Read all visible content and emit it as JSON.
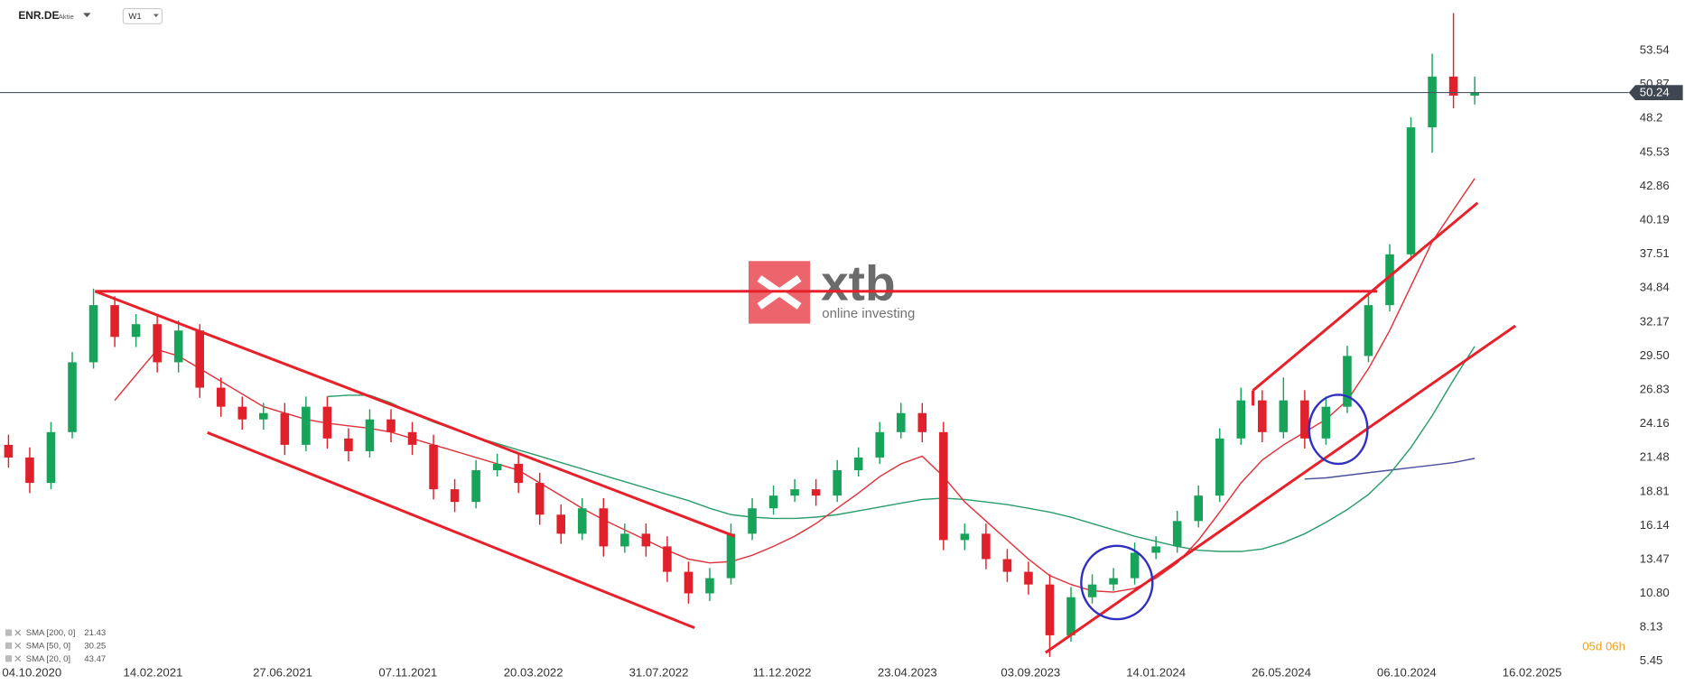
{
  "header": {
    "symbol": "ENR.DE",
    "kind": "Aktie",
    "interval": "W1"
  },
  "logo": {
    "brand": "xtb",
    "tagline": "online investing"
  },
  "countdown": "05d 06h",
  "chart_data": {
    "type": "candlestick",
    "up_color": "#18a35a",
    "down_color": "#e0202a",
    "open": [
      22.5,
      21.5,
      19.5,
      23.5,
      29,
      33.5,
      31,
      32,
      29,
      31.5,
      27,
      25.5,
      24.5,
      25,
      22.5,
      25.5,
      23,
      22,
      24.5,
      23.5,
      22.5,
      19,
      18,
      20.5,
      21,
      19.5,
      17,
      15.5,
      17.5,
      14.5,
      15.5,
      14.5,
      12.5,
      10.8,
      12,
      15.5,
      17.5,
      18.5,
      19,
      18.5,
      20.5,
      21.5,
      23.5,
      25,
      23.5,
      15,
      15.5,
      13.5,
      12.5,
      11.5,
      7.5,
      10.5,
      11.5,
      12,
      14,
      14.5,
      16.5,
      18.5,
      23,
      26,
      23.5,
      26,
      23,
      25.5,
      29.5,
      33.5,
      37.5,
      47.5,
      51.5,
      50
    ],
    "high": [
      23.3,
      22.3,
      24.3,
      29.8,
      34.8,
      34.2,
      32.8,
      32.8,
      32.3,
      32.0,
      27.8,
      26.3,
      25.8,
      25.8,
      26.3,
      26.3,
      23.8,
      25.3,
      25.3,
      24.3,
      23.3,
      19.8,
      21.3,
      21.8,
      21.8,
      20.3,
      17.8,
      18.3,
      18.3,
      16.3,
      16.3,
      15.3,
      13.3,
      12.8,
      16.3,
      18.3,
      19.3,
      19.8,
      19.8,
      21.3,
      22.3,
      24.3,
      25.8,
      25.8,
      24.3,
      16.3,
      16.3,
      14.3,
      13.3,
      12.3,
      11.3,
      12.3,
      12.8,
      14.8,
      15.3,
      17.3,
      19.3,
      23.8,
      27,
      26.8,
      27.8,
      26.8,
      26.3,
      30.3,
      34.3,
      38.3,
      48.3,
      53.3,
      56.5,
      51.5
    ],
    "low": [
      20.7,
      18.7,
      19,
      23,
      28.5,
      30.2,
      30.2,
      28.2,
      28.2,
      26.2,
      24.7,
      23.7,
      23.7,
      21.7,
      22,
      22.2,
      21.2,
      21.5,
      22.7,
      21.7,
      18.2,
      17.2,
      17.5,
      20,
      18.7,
      16.2,
      14.7,
      15,
      13.7,
      14,
      13.7,
      11.7,
      10,
      10.2,
      11.5,
      15,
      17,
      18,
      17.7,
      18,
      20,
      21,
      23,
      22.7,
      14.2,
      14.2,
      12.7,
      11.7,
      10.7,
      5.8,
      7,
      10,
      11,
      11.5,
      13.5,
      14,
      16,
      18,
      22.5,
      22.7,
      23,
      22.2,
      22.5,
      25,
      29,
      33,
      37,
      45.5,
      49,
      49.3
    ],
    "close": [
      21.5,
      19.5,
      23.5,
      29,
      33.5,
      31,
      32,
      29,
      31.5,
      27,
      25.5,
      24.5,
      25,
      22.5,
      25.5,
      23,
      22,
      24.5,
      23.5,
      22.5,
      19,
      18,
      20.5,
      21,
      19.5,
      17,
      15.5,
      17.5,
      14.5,
      15.5,
      14.5,
      12.5,
      10.8,
      12,
      15.5,
      17.5,
      18.5,
      19,
      18.5,
      20.5,
      21.5,
      23.5,
      25,
      23.5,
      15,
      15.5,
      13.5,
      12.5,
      11.5,
      7.5,
      10.5,
      11.5,
      12,
      14,
      14.5,
      16.5,
      18.5,
      23,
      26,
      23.5,
      26,
      23,
      25.5,
      29.5,
      33.5,
      37.5,
      47.5,
      51.5,
      50,
      50.24
    ],
    "last_price": 50.24,
    "series": [
      {
        "name": "SMA [200, 0]",
        "color": "#4b4f9c",
        "values": [
          null,
          null,
          null,
          null,
          null,
          null,
          null,
          null,
          null,
          null,
          null,
          null,
          null,
          null,
          null,
          null,
          null,
          null,
          null,
          null,
          null,
          null,
          null,
          null,
          null,
          null,
          null,
          null,
          null,
          null,
          null,
          null,
          null,
          null,
          null,
          null,
          null,
          null,
          null,
          null,
          null,
          null,
          null,
          null,
          null,
          null,
          null,
          null,
          null,
          null,
          null,
          null,
          null,
          null,
          null,
          null,
          null,
          null,
          null,
          null,
          null,
          19.8,
          19.9,
          20.1,
          20.3,
          20.5,
          20.7,
          20.9,
          21.1,
          21.43
        ]
      },
      {
        "name": "SMA [50, 0]",
        "color": "#2a9d6a",
        "values": [
          null,
          null,
          null,
          null,
          null,
          null,
          null,
          null,
          null,
          null,
          null,
          null,
          null,
          null,
          null,
          26.3,
          26.4,
          26.4,
          25.8,
          25,
          24.3,
          23.7,
          23.1,
          22.6,
          22.1,
          21.6,
          21.1,
          20.6,
          20.1,
          19.6,
          19.1,
          18.6,
          18.1,
          17.5,
          17,
          16.8,
          16.7,
          16.7,
          16.8,
          17,
          17.3,
          17.6,
          17.9,
          18.2,
          18.3,
          18.2,
          18,
          17.8,
          17.5,
          17.2,
          16.8,
          16.3,
          15.8,
          15.3,
          14.9,
          14.5,
          14.2,
          14.1,
          14.1,
          14.3,
          14.8,
          15.5,
          16.4,
          17.4,
          18.6,
          20.2,
          22.3,
          24.8,
          27.6,
          30.25
        ]
      },
      {
        "name": "SMA [20, 0]",
        "color": "#e0313b",
        "values": [
          null,
          null,
          null,
          null,
          null,
          26,
          28,
          30,
          29.5,
          28.5,
          27.5,
          26.5,
          25.5,
          25,
          24.5,
          24.2,
          24,
          23.8,
          23.5,
          23,
          22.5,
          22,
          21.5,
          21,
          20.5,
          19.5,
          18.5,
          17.5,
          16.6,
          15.8,
          15,
          14.2,
          13.5,
          13.2,
          13.3,
          13.8,
          14.5,
          15.3,
          16.3,
          17.5,
          18.7,
          20,
          21,
          21.6,
          20,
          18,
          16.5,
          15,
          13.5,
          12.2,
          11.5,
          11,
          10.9,
          11.2,
          12,
          13.2,
          15,
          17.2,
          19.5,
          21.3,
          22.5,
          23.5,
          24.5,
          26,
          28.5,
          31.5,
          35,
          38.5,
          41,
          43.47
        ]
      }
    ],
    "xlim": [
      -0.4,
      76.1
    ],
    "xticks": [
      {
        "value": 1.1,
        "label": "04.10.2020"
      },
      {
        "value": 6.8,
        "label": "14.02.2021"
      },
      {
        "value": 12.9,
        "label": "27.06.2021"
      },
      {
        "value": 18.8,
        "label": "07.11.2021"
      },
      {
        "value": 24.7,
        "label": "20.03.2022"
      },
      {
        "value": 30.6,
        "label": "31.07.2022"
      },
      {
        "value": 36.4,
        "label": "11.12.2022"
      },
      {
        "value": 42.3,
        "label": "23.04.2023"
      },
      {
        "value": 48.1,
        "label": "03.09.2023"
      },
      {
        "value": 54,
        "label": "14.01.2024"
      },
      {
        "value": 59.9,
        "label": "26.05.2024"
      },
      {
        "value": 65.8,
        "label": "06.10.2024"
      },
      {
        "value": 71.7,
        "label": "16.02.2025"
      }
    ],
    "ylim": [
      4.86,
      57.53
    ],
    "yticks": [
      53.54,
      50.87,
      48.2,
      45.53,
      42.86,
      40.19,
      37.51,
      34.84,
      32.17,
      {
        "value": 29.5,
        "label": "29.50"
      },
      26.83,
      24.16,
      21.48,
      18.81,
      16.14,
      13.47,
      {
        "value": 10.8,
        "label": "10.80"
      },
      8.13,
      5.45
    ]
  }
}
